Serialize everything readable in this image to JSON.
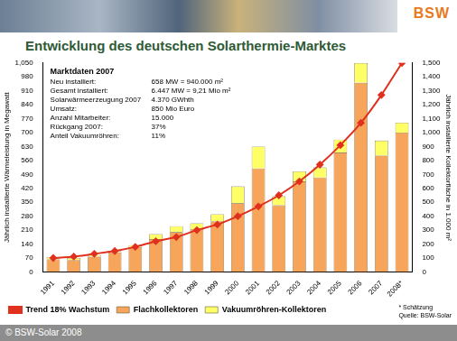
{
  "chart_data": {
    "type": "bar",
    "title": "Entwicklung des deutschen Solarthermie-Marktes",
    "logo": "BSW",
    "categories": [
      "1991",
      "1992",
      "1993",
      "1994",
      "1995",
      "1996",
      "1997",
      "1998",
      "1999",
      "2000",
      "2001",
      "2002",
      "2003",
      "2004",
      "2005",
      "2006",
      "2007",
      "2008*"
    ],
    "series": [
      {
        "name": "Flachkollektoren",
        "color": "#f7a55a",
        "values": [
          63,
          60,
          77,
          98,
          125,
          165,
          200,
          215,
          255,
          345,
          520,
          335,
          455,
          475,
          600,
          950,
          585,
          700
        ]
      },
      {
        "name": "Vakuumröhren-Kollektoren",
        "color": "#ffff66",
        "values": [
          12,
          10,
          8,
          7,
          10,
          25,
          30,
          30,
          35,
          85,
          110,
          45,
          50,
          50,
          65,
          100,
          75,
          50
        ]
      },
      {
        "name": "Trend 18% Wachstum",
        "type": "line",
        "axis": "y2",
        "color": "#e0301e",
        "marker": "diamond",
        "values": [
          100,
          110,
          130,
          150,
          180,
          220,
          250,
          300,
          340,
          400,
          470,
          550,
          650,
          770,
          910,
          1070,
          1270,
          1500
        ]
      }
    ],
    "stacked": true,
    "grid": false,
    "legend": "bottom",
    "ylabel": "Jährlich installierte Wärmeleistung in Megawatt",
    "y2label": "Jährlich installierte Kollektorfläche in 1.000 m²",
    "ylim": [
      0,
      1050
    ],
    "yticks": [
      0,
      70,
      140,
      210,
      280,
      350,
      420,
      490,
      560,
      630,
      700,
      770,
      840,
      910,
      980,
      1050
    ],
    "y2lim": [
      0,
      1500
    ],
    "y2ticks": [
      0,
      100,
      200,
      300,
      400,
      500,
      600,
      700,
      800,
      900,
      1000,
      1100,
      1200,
      1300,
      1400,
      1500
    ],
    "annotations": {
      "title": "Marktdaten 2007",
      "rows": [
        [
          "Neu installiert:",
          "658 MW = 940.000 m²"
        ],
        [
          "Gesamt installiert:",
          "6.447 MW = 9,21 Mio m²"
        ],
        [
          "Solarwärmeerzeugung 2007",
          "4.370 GWhth"
        ],
        [
          "Umsatz:",
          "850 Mio Euro"
        ],
        [
          "Anzahl Mitarbeiter:",
          "15.000"
        ],
        [
          "Rückgang 2007:",
          "37%"
        ],
        [
          "Anteil Vakuumröhren:",
          "11%"
        ]
      ]
    },
    "footnote": [
      "* Schätzung",
      "Quelle: BSW-Solar"
    ],
    "copyright": "© BSW-Solar 2008"
  }
}
